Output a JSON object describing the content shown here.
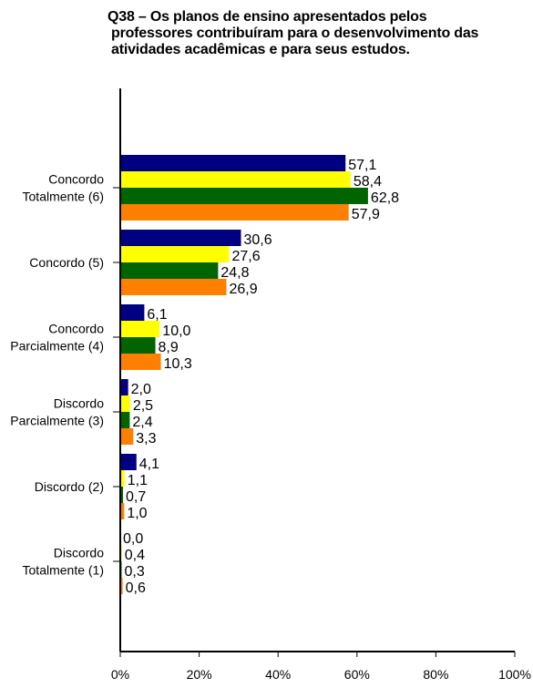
{
  "chart_data": {
    "type": "bar",
    "orientation": "horizontal",
    "title_lines": [
      "Q38 – Os planos de ensino apresentados pelos",
      "professores contribuíram para o desenvolvimento das",
      "atividades acadêmicas e para seus estudos."
    ],
    "categories": [
      [
        "Concordo",
        "Totalmente (6)"
      ],
      [
        "Concordo (5)"
      ],
      [
        "Concordo",
        "Parcialmente (4)"
      ],
      [
        "Discordo",
        "Parcialmente (3)"
      ],
      [
        "Discordo (2)"
      ],
      [
        "Discordo",
        "Totalmente (1)"
      ]
    ],
    "series": [
      {
        "color": "#000080",
        "values": [
          57.1,
          30.6,
          6.1,
          2.0,
          4.1,
          0.0
        ],
        "labels": [
          "57,1",
          "30,6",
          "6,1",
          "2,0",
          "4,1",
          "0,0"
        ]
      },
      {
        "color": "#ffff00",
        "values": [
          58.4,
          27.6,
          10.0,
          2.5,
          1.1,
          0.4
        ],
        "labels": [
          "58,4",
          "27,6",
          "10,0",
          "2,5",
          "1,1",
          "0,4"
        ]
      },
      {
        "color": "#006400",
        "values": [
          62.8,
          24.8,
          8.9,
          2.4,
          0.7,
          0.3
        ],
        "labels": [
          "62,8",
          "24,8",
          "8,9",
          "2,4",
          "0,7",
          "0,3"
        ]
      },
      {
        "color": "#ff8000",
        "values": [
          57.9,
          26.9,
          10.3,
          3.3,
          1.0,
          0.6
        ],
        "labels": [
          "57,9",
          "26,9",
          "10,3",
          "3,3",
          "1,0",
          "0,6"
        ]
      }
    ],
    "xlim": [
      0,
      100
    ],
    "xticks": [
      "0%",
      "20%",
      "40%",
      "60%",
      "80%",
      "100%"
    ],
    "grid": false,
    "legend": "none"
  }
}
